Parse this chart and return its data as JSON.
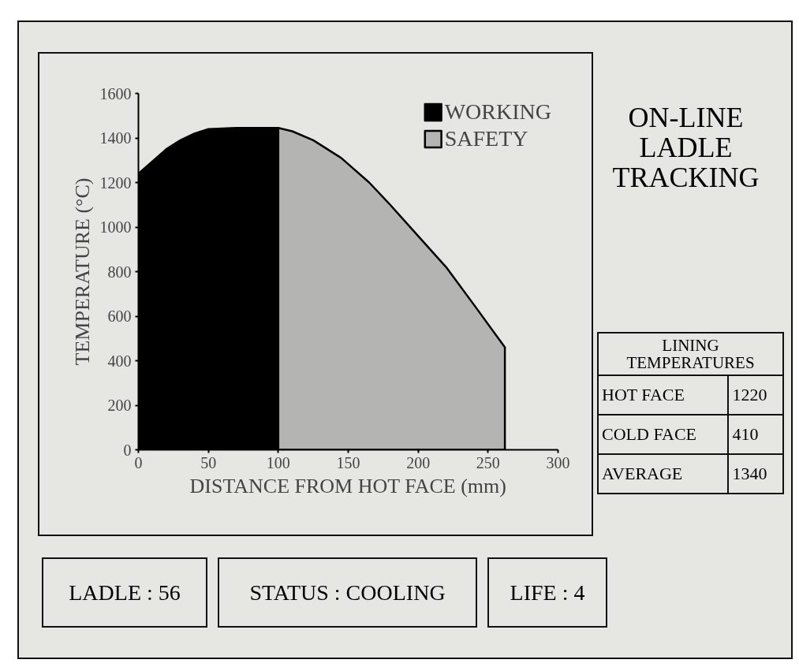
{
  "chart_data": {
    "type": "area",
    "title": "ON-LINE LADLE TRACKING",
    "xlabel": "DISTANCE FROM HOT FACE (mm)",
    "ylabel": "TEMPERATURE (°C)",
    "series": [
      {
        "name": "WORKING",
        "color": "#000000",
        "x": [
          0,
          11,
          20,
          30,
          40,
          50,
          70,
          100
        ],
        "values": [
          1240,
          1300,
          1350,
          1390,
          1420,
          1440,
          1445,
          1445
        ]
      },
      {
        "name": "SAFETY",
        "color": "#b4b4b2",
        "x": [
          100,
          110,
          125,
          145,
          165,
          180,
          200,
          220,
          240,
          262
        ],
        "values": [
          1445,
          1430,
          1390,
          1310,
          1200,
          1100,
          960,
          820,
          650,
          460
        ]
      }
    ],
    "xlim": [
      0,
      300
    ],
    "xticks": [
      0,
      50,
      100,
      150,
      200,
      250,
      300
    ],
    "ylim": [
      0,
      1600
    ],
    "yticks": [
      0,
      200,
      400,
      600,
      800,
      1000,
      1200,
      1400,
      1600
    ],
    "legend": "top right",
    "annotations": [
      "LINING TEMPERATURES",
      "HOT FACE",
      "1220",
      "COLD FACE",
      "410",
      "AVERAGE",
      "1340",
      "LADLE : 56",
      "STATUS : COOLING",
      "LIFE : 4"
    ]
  }
}
